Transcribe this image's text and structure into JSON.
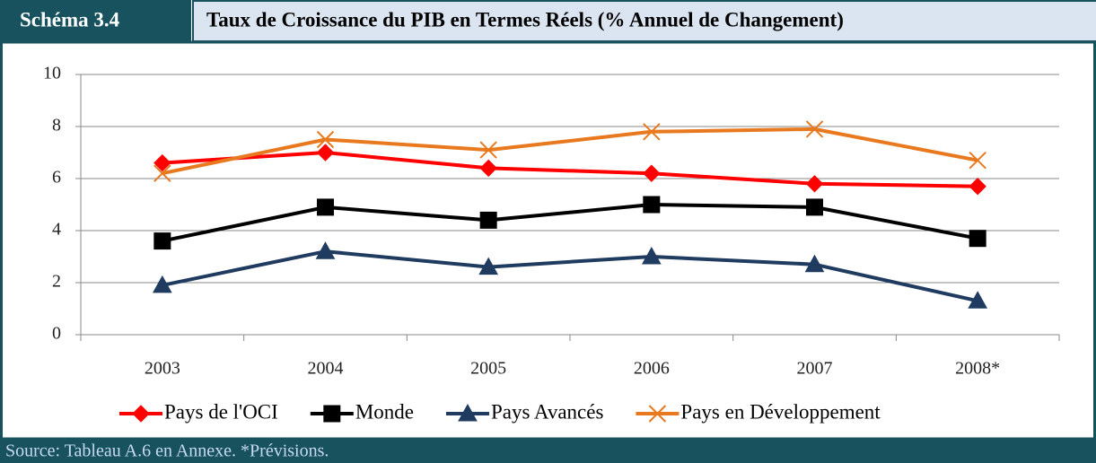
{
  "header": {
    "label": "Schéma 3.4"
  },
  "footer": {
    "source": "Source: Tableau A.6 en Annexe. *Prévisions."
  },
  "chart_data": {
    "type": "line",
    "title": "Taux de Croissance du PIB en Termes Réels (% Annuel de Changement)",
    "categories": [
      "2003",
      "2004",
      "2005",
      "2006",
      "2007",
      "2008*"
    ],
    "series": [
      {
        "name": "Pays de l'OCI",
        "color": "#ff0000",
        "marker": "diamond",
        "values": [
          6.6,
          7.0,
          6.4,
          6.2,
          5.8,
          5.7
        ]
      },
      {
        "name": "Monde",
        "color": "#000000",
        "marker": "square",
        "values": [
          3.6,
          4.9,
          4.4,
          5.0,
          4.9,
          3.7
        ]
      },
      {
        "name": "Pays Avancés",
        "color": "#1f3b5f",
        "marker": "triangle",
        "values": [
          1.9,
          3.2,
          2.6,
          3.0,
          2.7,
          1.3
        ]
      },
      {
        "name": "Pays en Développement",
        "color": "#e8791e",
        "marker": "x",
        "values": [
          6.2,
          7.5,
          7.1,
          7.8,
          7.9,
          6.7
        ]
      }
    ],
    "ylim": [
      0,
      10
    ],
    "yticks": [
      0,
      2,
      4,
      6,
      8,
      10
    ],
    "grid": true,
    "legend": "bottom"
  }
}
